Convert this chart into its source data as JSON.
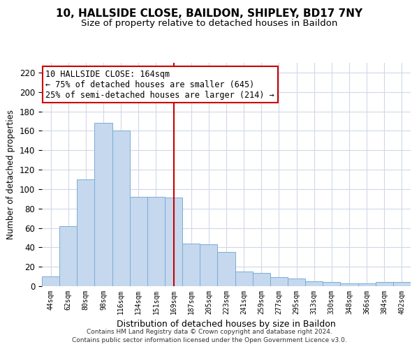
{
  "title": "10, HALLSIDE CLOSE, BAILDON, SHIPLEY, BD17 7NY",
  "subtitle": "Size of property relative to detached houses in Baildon",
  "xlabel": "Distribution of detached houses by size in Baildon",
  "ylabel": "Number of detached properties",
  "categories": [
    "44sqm",
    "62sqm",
    "80sqm",
    "98sqm",
    "116sqm",
    "134sqm",
    "151sqm",
    "169sqm",
    "187sqm",
    "205sqm",
    "223sqm",
    "241sqm",
    "259sqm",
    "277sqm",
    "295sqm",
    "313sqm",
    "330sqm",
    "348sqm",
    "366sqm",
    "384sqm",
    "402sqm"
  ],
  "values": [
    10,
    62,
    110,
    168,
    160,
    92,
    92,
    91,
    44,
    43,
    35,
    15,
    14,
    9,
    8,
    5,
    4,
    3,
    3,
    4,
    4
  ],
  "bar_color": "#c5d8ee",
  "bar_edge_color": "#7aadd4",
  "vline_x_index": 7,
  "vline_color": "#cc0000",
  "ylim": [
    0,
    230
  ],
  "yticks": [
    0,
    20,
    40,
    60,
    80,
    100,
    120,
    140,
    160,
    180,
    200,
    220
  ],
  "annotation_title": "10 HALLSIDE CLOSE: 164sqm",
  "annotation_line1": "← 75% of detached houses are smaller (645)",
  "annotation_line2": "25% of semi-detached houses are larger (214) →",
  "footer1": "Contains HM Land Registry data © Crown copyright and database right 2024.",
  "footer2": "Contains public sector information licensed under the Open Government Licence v3.0.",
  "title_fontsize": 11,
  "subtitle_fontsize": 9.5,
  "annotation_fontsize": 8.5,
  "annotation_box_color": "#ffffff",
  "annotation_box_edge": "#cc0000",
  "background_color": "#ffffff",
  "grid_color": "#d0d8e8"
}
